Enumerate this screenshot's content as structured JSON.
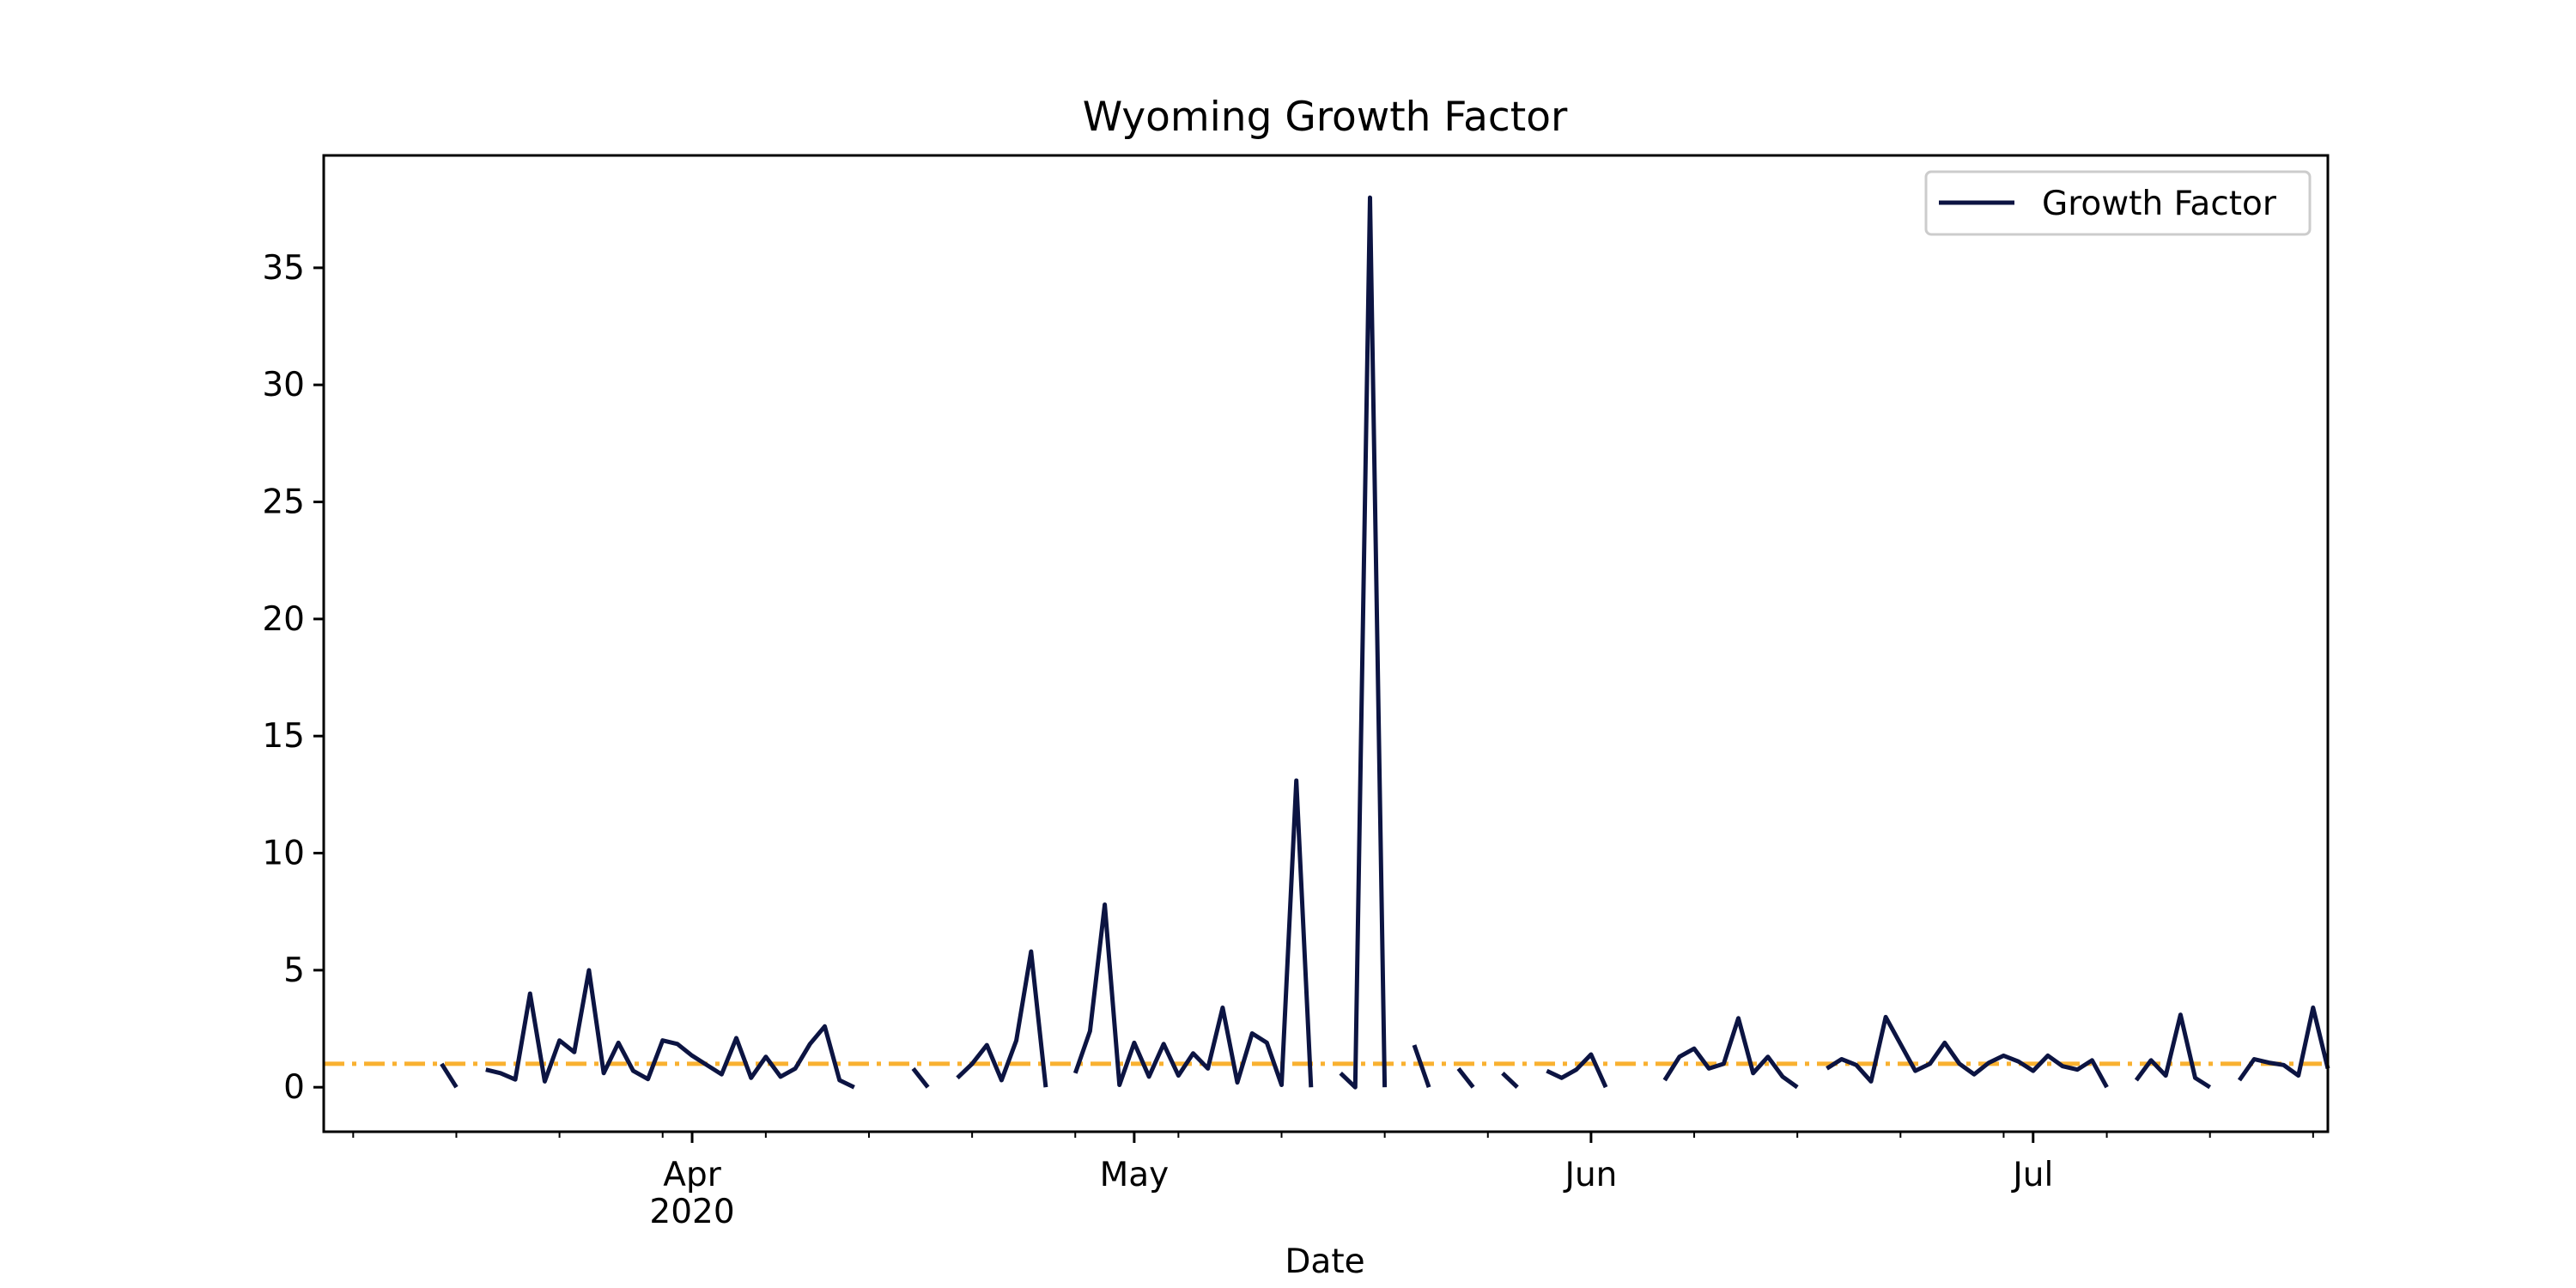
{
  "chart_data": {
    "type": "line",
    "title": "Wyoming Growth Factor",
    "xlabel": "Date",
    "ylabel": "",
    "ylim": [
      -1.9,
      39.8
    ],
    "xlim": [
      "2020-03-07",
      "2020-07-21"
    ],
    "x_ticks": [
      {
        "date": "2020-04-01",
        "label": "Apr",
        "sublabel": "2020"
      },
      {
        "date": "2020-05-01",
        "label": "May",
        "sublabel": ""
      },
      {
        "date": "2020-06-01",
        "label": "Jun",
        "sublabel": ""
      },
      {
        "date": "2020-07-01",
        "label": "Jul",
        "sublabel": ""
      }
    ],
    "y_ticks": [
      0,
      5,
      10,
      15,
      20,
      25,
      30,
      35
    ],
    "grid": false,
    "legend": {
      "placement": "top-right",
      "entries": [
        "Growth Factor"
      ]
    },
    "colors": {
      "series": "#0c1442",
      "reference": "#f9b130"
    },
    "reference_line": {
      "y": 1,
      "style": "dash-dot"
    },
    "series": [
      {
        "name": "Growth Factor",
        "x": [
          "2020-03-15",
          "2020-03-16",
          "2020-03-17",
          "2020-03-18",
          "2020-03-19",
          "2020-03-20",
          "2020-03-21",
          "2020-03-22",
          "2020-03-23",
          "2020-03-24",
          "2020-03-25",
          "2020-03-26",
          "2020-03-27",
          "2020-03-28",
          "2020-03-29",
          "2020-03-30",
          "2020-03-31",
          "2020-04-01",
          "2020-04-02",
          "2020-04-03",
          "2020-04-04",
          "2020-04-05",
          "2020-04-06",
          "2020-04-07",
          "2020-04-08",
          "2020-04-09",
          "2020-04-10",
          "2020-04-11",
          "2020-04-12",
          "2020-04-13",
          "2020-04-14",
          "2020-04-15",
          "2020-04-16",
          "2020-04-17",
          "2020-04-18",
          "2020-04-19",
          "2020-04-20",
          "2020-04-21",
          "2020-04-22",
          "2020-04-23",
          "2020-04-24",
          "2020-04-25",
          "2020-04-26",
          "2020-04-27",
          "2020-04-28",
          "2020-04-29",
          "2020-04-30",
          "2020-05-01",
          "2020-05-02",
          "2020-05-03",
          "2020-05-04",
          "2020-05-05",
          "2020-05-06",
          "2020-05-07",
          "2020-05-08",
          "2020-05-09",
          "2020-05-10",
          "2020-05-11",
          "2020-05-12",
          "2020-05-13",
          "2020-05-14",
          "2020-05-15",
          "2020-05-16",
          "2020-05-17",
          "2020-05-18",
          "2020-05-19",
          "2020-05-20",
          "2020-05-21",
          "2020-05-22",
          "2020-05-23",
          "2020-05-24",
          "2020-05-25",
          "2020-05-26",
          "2020-05-27",
          "2020-05-28",
          "2020-05-29",
          "2020-05-30",
          "2020-05-31",
          "2020-06-01",
          "2020-06-02",
          "2020-06-03",
          "2020-06-04",
          "2020-06-05",
          "2020-06-06",
          "2020-06-07",
          "2020-06-08",
          "2020-06-09",
          "2020-06-10",
          "2020-06-11",
          "2020-06-12",
          "2020-06-13",
          "2020-06-14",
          "2020-06-15",
          "2020-06-16",
          "2020-06-17",
          "2020-06-18",
          "2020-06-19",
          "2020-06-20",
          "2020-06-21",
          "2020-06-22",
          "2020-06-23",
          "2020-06-24",
          "2020-06-25",
          "2020-06-26",
          "2020-06-27",
          "2020-06-28",
          "2020-06-29",
          "2020-06-30",
          "2020-07-01",
          "2020-07-02",
          "2020-07-03",
          "2020-07-04",
          "2020-07-05",
          "2020-07-06",
          "2020-07-07",
          "2020-07-08",
          "2020-07-09",
          "2020-07-10",
          "2020-07-11",
          "2020-07-12",
          "2020-07-13",
          "2020-07-14",
          "2020-07-15",
          "2020-07-16",
          "2020-07-17",
          "2020-07-18",
          "2020-07-19",
          "2020-07-20",
          "2020-07-21"
        ],
        "values": [
          1.0,
          0.0,
          null,
          0.75,
          0.6,
          0.33,
          4.0,
          0.25,
          2.0,
          1.5,
          5.0,
          0.6,
          1.9,
          0.7,
          0.35,
          2.0,
          1.85,
          1.35,
          0.95,
          0.55,
          2.1,
          0.4,
          1.3,
          0.45,
          0.8,
          1.85,
          2.6,
          0.3,
          0.0,
          null,
          null,
          null,
          0.8,
          0.0,
          null,
          0.4,
          1.0,
          1.8,
          0.3,
          2.0,
          5.8,
          0.0,
          null,
          0.6,
          2.4,
          7.8,
          0.1,
          1.9,
          0.45,
          1.85,
          0.5,
          1.45,
          0.8,
          3.4,
          0.2,
          2.3,
          1.9,
          0.1,
          13.1,
          0.0,
          null,
          0.6,
          0.0,
          38.0,
          0.0,
          null,
          1.8,
          0.0,
          null,
          0.8,
          0.0,
          null,
          0.6,
          0.0,
          null,
          0.7,
          0.4,
          0.75,
          1.4,
          0.0,
          null,
          null,
          null,
          0.3,
          1.3,
          1.65,
          0.8,
          1.0,
          2.95,
          0.6,
          1.3,
          0.45,
          0.0,
          null,
          0.8,
          1.2,
          0.95,
          0.25,
          3.0,
          1.85,
          0.7,
          1.0,
          1.9,
          1.0,
          0.55,
          1.05,
          1.35,
          1.1,
          0.7,
          1.35,
          0.9,
          0.75,
          1.15,
          0.0,
          null,
          0.3,
          1.15,
          0.5,
          3.1,
          0.4,
          0.0,
          null,
          0.3,
          1.2,
          1.05,
          0.95,
          0.5,
          3.4,
          0.8
        ]
      }
    ]
  }
}
